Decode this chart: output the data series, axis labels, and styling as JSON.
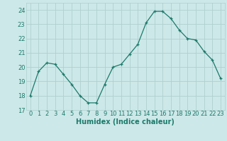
{
  "x": [
    0,
    1,
    2,
    3,
    4,
    5,
    6,
    7,
    8,
    9,
    10,
    11,
    12,
    13,
    14,
    15,
    16,
    17,
    18,
    19,
    20,
    21,
    22,
    23
  ],
  "y": [
    18.0,
    19.7,
    20.3,
    20.2,
    19.5,
    18.8,
    18.0,
    17.5,
    17.5,
    18.8,
    20.0,
    20.2,
    20.9,
    21.6,
    23.1,
    23.9,
    23.9,
    23.4,
    22.6,
    22.0,
    21.9,
    21.1,
    20.5,
    19.2
  ],
  "xlabel": "Humidex (Indice chaleur)",
  "bg_color": "#cde8e8",
  "grid_color": "#b0cfcf",
  "line_color": "#1a7a6a",
  "marker": "+",
  "xlim": [
    -0.5,
    23.5
  ],
  "ylim": [
    17,
    24.5
  ],
  "yticks": [
    17,
    18,
    19,
    20,
    21,
    22,
    23,
    24
  ],
  "xticks": [
    0,
    1,
    2,
    3,
    4,
    5,
    6,
    7,
    8,
    9,
    10,
    11,
    12,
    13,
    14,
    15,
    16,
    17,
    18,
    19,
    20,
    21,
    22,
    23
  ],
  "tick_fontsize": 6,
  "xlabel_fontsize": 7
}
